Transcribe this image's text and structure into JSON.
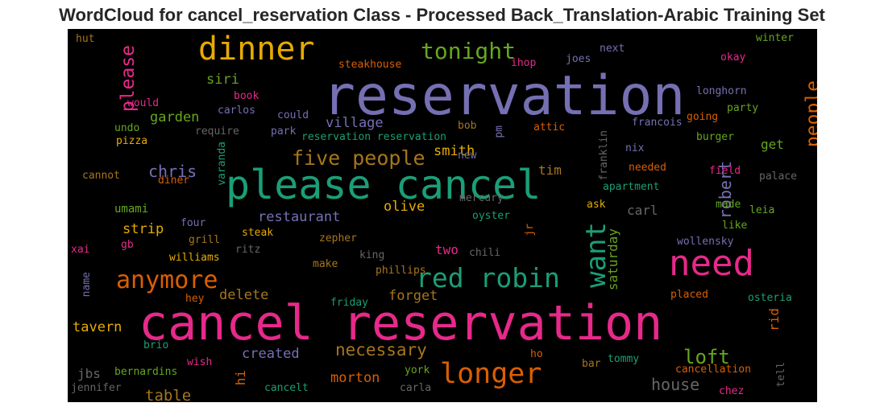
{
  "chart_data": {
    "type": "wordcloud",
    "title": "WordCloud for cancel_reservation Class - Processed Back_Translation-Arabic Training Set",
    "background": "#000000",
    "colormap": [
      "#1b9e77",
      "#d95f02",
      "#7570b3",
      "#e7298a",
      "#66a61e",
      "#e6ab02",
      "#a6761d",
      "#666666"
    ],
    "words": [
      {
        "text": "reservation",
        "weight": 100,
        "color": "#7570b3"
      },
      {
        "text": "cancel reservation",
        "weight": 97,
        "color": "#e7298a"
      },
      {
        "text": "please cancel",
        "weight": 80,
        "color": "#1b9e77"
      },
      {
        "text": "need",
        "weight": 62,
        "color": "#e7298a"
      },
      {
        "text": "dinner",
        "weight": 58,
        "color": "#e6ab02"
      },
      {
        "text": "longer",
        "weight": 50,
        "color": "#d95f02"
      },
      {
        "text": "want",
        "weight": 48,
        "color": "#1b9e77"
      },
      {
        "text": "red robin",
        "weight": 47,
        "color": "#1b9e77"
      },
      {
        "text": "anymore",
        "weight": 42,
        "color": "#d95f02"
      },
      {
        "text": "tonight",
        "weight": 40,
        "color": "#66a61e"
      },
      {
        "text": "five people",
        "weight": 35,
        "color": "#a6761d"
      },
      {
        "text": "loft",
        "weight": 34,
        "color": "#66a61e"
      },
      {
        "text": "please",
        "weight": 33,
        "color": "#e7298a"
      },
      {
        "text": "people",
        "weight": 33,
        "color": "#d95f02"
      },
      {
        "text": "necessary",
        "weight": 30,
        "color": "#a6761d"
      },
      {
        "text": "robert",
        "weight": 28,
        "color": "#7570b3"
      },
      {
        "text": "house",
        "weight": 28,
        "color": "#666666"
      },
      {
        "text": "chris",
        "weight": 28,
        "color": "#7570b3"
      },
      {
        "text": "table",
        "weight": 26,
        "color": "#a6761d"
      },
      {
        "text": "restaurant",
        "weight": 24,
        "color": "#7570b3"
      },
      {
        "text": "morton",
        "weight": 24,
        "color": "#d95f02"
      },
      {
        "text": "forget",
        "weight": 24,
        "color": "#a6761d"
      },
      {
        "text": "olive",
        "weight": 24,
        "color": "#e6ab02"
      },
      {
        "text": "garden",
        "weight": 24,
        "color": "#66a61e"
      },
      {
        "text": "siri",
        "weight": 24,
        "color": "#66a61e"
      },
      {
        "text": "village",
        "weight": 24,
        "color": "#7570b3"
      },
      {
        "text": "smith",
        "weight": 24,
        "color": "#e6ab02"
      },
      {
        "text": "strip",
        "weight": 24,
        "color": "#e6ab02"
      },
      {
        "text": "delete",
        "weight": 24,
        "color": "#a6761d"
      },
      {
        "text": "tavern",
        "weight": 23,
        "color": "#e6ab02"
      },
      {
        "text": "created",
        "weight": 23,
        "color": "#7570b3"
      },
      {
        "text": "saturday",
        "weight": 22,
        "color": "#66a61e"
      },
      {
        "text": "two",
        "weight": 22,
        "color": "#e7298a"
      },
      {
        "text": "carl",
        "weight": 22,
        "color": "#666666"
      },
      {
        "text": "get",
        "weight": 22,
        "color": "#66a61e"
      },
      {
        "text": "tim",
        "weight": 22,
        "color": "#a6761d"
      },
      {
        "text": "jbs",
        "weight": 22,
        "color": "#666666"
      },
      {
        "text": "hi",
        "weight": 22,
        "color": "#d95f02"
      },
      {
        "text": "rid",
        "weight": 20,
        "color": "#d95f02"
      },
      {
        "text": "umami",
        "weight": 18,
        "color": "#66a61e"
      },
      {
        "text": "steakhouse",
        "weight": 15,
        "color": "#d95f02"
      },
      {
        "text": "ihop",
        "weight": 15,
        "color": "#e7298a"
      },
      {
        "text": "next",
        "weight": 15,
        "color": "#7570b3"
      },
      {
        "text": "joes",
        "weight": 15,
        "color": "#7570b3"
      },
      {
        "text": "winter",
        "weight": 15,
        "color": "#66a61e"
      },
      {
        "text": "okay",
        "weight": 15,
        "color": "#e7298a"
      },
      {
        "text": "hut",
        "weight": 15,
        "color": "#a6761d"
      },
      {
        "text": "book",
        "weight": 15,
        "color": "#e7298a"
      },
      {
        "text": "would",
        "weight": 15,
        "color": "#e7298a"
      },
      {
        "text": "carlos",
        "weight": 15,
        "color": "#7570b3"
      },
      {
        "text": "could",
        "weight": 15,
        "color": "#7570b3"
      },
      {
        "text": "undo",
        "weight": 15,
        "color": "#66a61e"
      },
      {
        "text": "require",
        "weight": 15,
        "color": "#666666"
      },
      {
        "text": "park",
        "weight": 15,
        "color": "#7570b3"
      },
      {
        "text": "reservation reservation",
        "weight": 15,
        "color": "#1b9e77"
      },
      {
        "text": "bob",
        "weight": 15,
        "color": "#a6761d"
      },
      {
        "text": "pm",
        "weight": 15,
        "color": "#7570b3"
      },
      {
        "text": "attic",
        "weight": 15,
        "color": "#d95f02"
      },
      {
        "text": "franklin",
        "weight": 15,
        "color": "#666666"
      },
      {
        "text": "francois",
        "weight": 15,
        "color": "#7570b3"
      },
      {
        "text": "longhorn",
        "weight": 15,
        "color": "#7570b3"
      },
      {
        "text": "party",
        "weight": 15,
        "color": "#66a61e"
      },
      {
        "text": "going",
        "weight": 15,
        "color": "#d95f02"
      },
      {
        "text": "burger",
        "weight": 15,
        "color": "#66a61e"
      },
      {
        "text": "pizza",
        "weight": 15,
        "color": "#e6ab02"
      },
      {
        "text": "varanda",
        "weight": 15,
        "color": "#1b9e77"
      },
      {
        "text": "new",
        "weight": 15,
        "color": "#7570b3"
      },
      {
        "text": "nix",
        "weight": 15,
        "color": "#7570b3"
      },
      {
        "text": "needed",
        "weight": 15,
        "color": "#d95f02"
      },
      {
        "text": "field",
        "weight": 15,
        "color": "#e7298a"
      },
      {
        "text": "palace",
        "weight": 15,
        "color": "#666666"
      },
      {
        "text": "cannot",
        "weight": 15,
        "color": "#a6761d"
      },
      {
        "text": "diner",
        "weight": 15,
        "color": "#d95f02"
      },
      {
        "text": "apartment",
        "weight": 15,
        "color": "#1b9e77"
      },
      {
        "text": "mercury",
        "weight": 15,
        "color": "#666666"
      },
      {
        "text": "ask",
        "weight": 15,
        "color": "#e6ab02"
      },
      {
        "text": "oyster",
        "weight": 15,
        "color": "#1b9e77"
      },
      {
        "text": "made",
        "weight": 15,
        "color": "#66a61e"
      },
      {
        "text": "leia",
        "weight": 15,
        "color": "#66a61e"
      },
      {
        "text": "like",
        "weight": 15,
        "color": "#66a61e"
      },
      {
        "text": "four",
        "weight": 15,
        "color": "#7570b3"
      },
      {
        "text": "grill",
        "weight": 15,
        "color": "#a6761d"
      },
      {
        "text": "steak",
        "weight": 15,
        "color": "#e6ab02"
      },
      {
        "text": "jr",
        "weight": 15,
        "color": "#d95f02"
      },
      {
        "text": "zepher",
        "weight": 15,
        "color": "#a6761d"
      },
      {
        "text": "xai",
        "weight": 15,
        "color": "#e7298a"
      },
      {
        "text": "gb",
        "weight": 15,
        "color": "#e7298a"
      },
      {
        "text": "williams",
        "weight": 15,
        "color": "#e6ab02"
      },
      {
        "text": "ritz",
        "weight": 15,
        "color": "#666666"
      },
      {
        "text": "king",
        "weight": 15,
        "color": "#666666"
      },
      {
        "text": "chili",
        "weight": 15,
        "color": "#666666"
      },
      {
        "text": "wollensky",
        "weight": 15,
        "color": "#7570b3"
      },
      {
        "text": "make",
        "weight": 15,
        "color": "#a6761d"
      },
      {
        "text": "phillips",
        "weight": 15,
        "color": "#a6761d"
      },
      {
        "text": "name",
        "weight": 15,
        "color": "#7570b3"
      },
      {
        "text": "hey",
        "weight": 15,
        "color": "#d95f02"
      },
      {
        "text": "friday",
        "weight": 15,
        "color": "#1b9e77"
      },
      {
        "text": "placed",
        "weight": 15,
        "color": "#d95f02"
      },
      {
        "text": "osteria",
        "weight": 15,
        "color": "#1b9e77"
      },
      {
        "text": "brio",
        "weight": 15,
        "color": "#1b9e77"
      },
      {
        "text": "wish",
        "weight": 15,
        "color": "#e7298a"
      },
      {
        "text": "ho",
        "weight": 15,
        "color": "#d95f02"
      },
      {
        "text": "bar",
        "weight": 15,
        "color": "#a6761d"
      },
      {
        "text": "tommy",
        "weight": 15,
        "color": "#1b9e77"
      },
      {
        "text": "cancellation",
        "weight": 15,
        "color": "#d95f02"
      },
      {
        "text": "tell",
        "weight": 15,
        "color": "#666666"
      },
      {
        "text": "bernardins",
        "weight": 15,
        "color": "#66a61e"
      },
      {
        "text": "york",
        "weight": 15,
        "color": "#66a61e"
      },
      {
        "text": "chez",
        "weight": 15,
        "color": "#e7298a"
      },
      {
        "text": "jennifer",
        "weight": 15,
        "color": "#666666"
      },
      {
        "text": "cancelt",
        "weight": 15,
        "color": "#1b9e77"
      },
      {
        "text": "carla",
        "weight": 15,
        "color": "#666666"
      }
    ]
  }
}
